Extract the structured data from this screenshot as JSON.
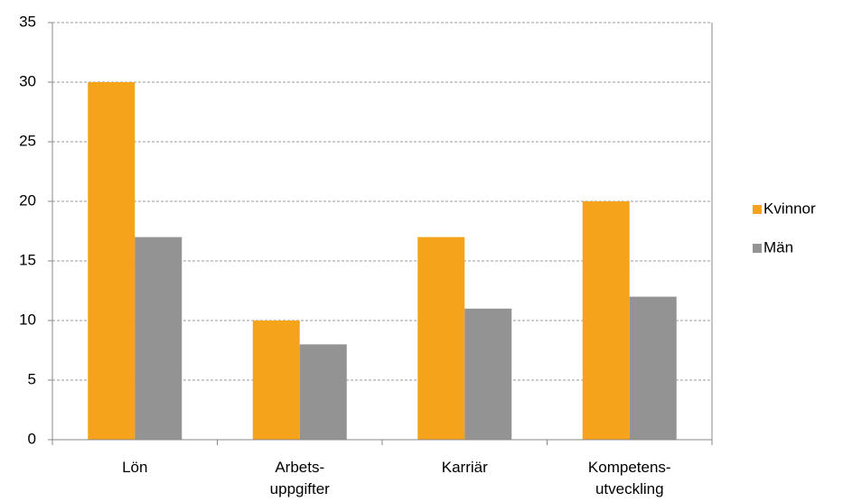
{
  "chart_data": {
    "type": "bar",
    "categories": [
      [
        "Lön"
      ],
      [
        "Arbets-",
        "uppgifter"
      ],
      [
        "Karriär"
      ],
      [
        "Kompetens-",
        "utveckling"
      ]
    ],
    "series": [
      {
        "name": "Kvinnor",
        "color": "#f5a31a",
        "values": [
          30,
          10,
          17,
          20
        ]
      },
      {
        "name": "Män",
        "color": "#939393",
        "values": [
          17,
          8,
          11,
          12
        ]
      }
    ],
    "ylim": [
      0,
      35
    ],
    "yticks": [
      0,
      5,
      10,
      15,
      20,
      25,
      30,
      35
    ],
    "grid": true,
    "legend": "right"
  }
}
